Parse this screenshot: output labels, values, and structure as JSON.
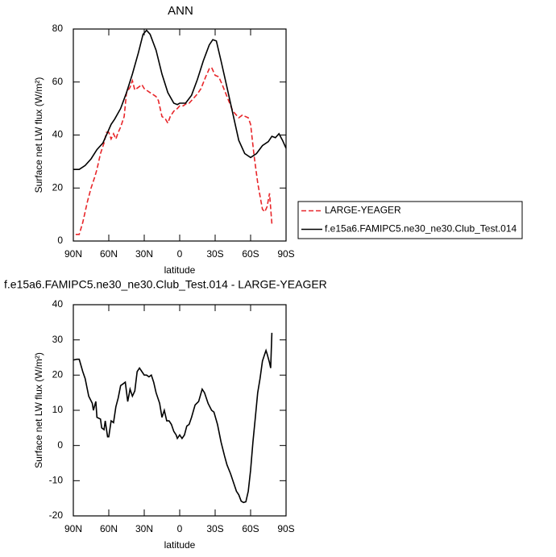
{
  "chart_data": [
    {
      "type": "line",
      "title": "ANN",
      "x_label": "latitude",
      "y_label": "Surface net LW flux (W/m²)",
      "xlim": [
        90,
        -90
      ],
      "ylim": [
        0,
        80
      ],
      "xticks": [
        {
          "value": 90,
          "label": "90N"
        },
        {
          "value": 60,
          "label": "60N"
        },
        {
          "value": 30,
          "label": "30N"
        },
        0,
        {
          "value": -30,
          "label": "30S"
        },
        {
          "value": -60,
          "label": "60S"
        },
        {
          "value": -90,
          "label": "90S"
        }
      ],
      "yticks": [
        0,
        20,
        40,
        60,
        80
      ],
      "legend": "right",
      "series": [
        {
          "name": "LARGE-YEAGER",
          "color": "#e8262a",
          "dashed": true,
          "x": [
            88,
            85,
            82,
            78,
            75,
            72,
            70,
            67,
            64,
            62,
            60,
            58,
            56,
            54,
            52,
            50,
            47,
            45,
            42,
            40,
            38,
            35,
            32,
            30,
            25,
            20,
            18,
            15,
            12,
            10,
            8,
            5,
            2,
            0,
            -3,
            -6,
            -8,
            -12,
            -15,
            -18,
            -22,
            -25,
            -27,
            -30,
            -33,
            -36,
            -40,
            -45,
            -50,
            -53,
            -58,
            -60,
            -63,
            -66,
            -68,
            -70,
            -72,
            -74,
            -76,
            -78
          ],
          "values": [
            2.5,
            2.5,
            7,
            15,
            20,
            24,
            27,
            33,
            37,
            41,
            41,
            38.5,
            40.5,
            38.5,
            41,
            43,
            47,
            56,
            58,
            60.5,
            57,
            58,
            59,
            57.5,
            56,
            54.5,
            53,
            47,
            46,
            44.5,
            47,
            49,
            50,
            51,
            51,
            52,
            52,
            54,
            55.5,
            57.5,
            62,
            65,
            65.5,
            62.5,
            62,
            59,
            54.5,
            49,
            46.5,
            47.5,
            46.5,
            44,
            32,
            22,
            17,
            12,
            11,
            13,
            18,
            6.5
          ]
        },
        {
          "name": "f.e15a6.FAMIPC5.ne30_ne30.Club_Test.014",
          "color": "#000000",
          "dashed": false,
          "x": [
            90,
            85,
            80,
            75,
            70,
            65,
            62,
            58,
            55,
            50,
            45,
            40,
            35,
            31,
            28,
            25,
            20,
            15,
            10,
            5,
            2,
            0,
            -5,
            -10,
            -15,
            -20,
            -25,
            -28,
            -31,
            -35,
            -40,
            -45,
            -50,
            -55,
            -60,
            -65,
            -70,
            -75,
            -78,
            -81,
            -84,
            -87,
            -90
          ],
          "values": [
            27,
            27,
            28.5,
            31,
            34.5,
            37,
            40,
            44,
            46,
            50,
            56,
            63,
            71,
            78,
            79.5,
            78,
            72,
            63,
            56,
            52,
            51.5,
            52,
            52,
            55,
            61,
            68,
            74,
            76,
            75.5,
            68,
            58,
            48,
            38,
            33,
            31.5,
            33,
            36,
            37.5,
            39.5,
            39,
            40.5,
            38,
            35
          ]
        }
      ]
    },
    {
      "type": "line",
      "title": "f.e15a6.FAMIPC5.ne30_ne30.Club_Test.014 - LARGE-YEAGER",
      "x_label": "latitude",
      "y_label": "Surface net LW flux (W/m²)",
      "xlim": [
        90,
        -90
      ],
      "ylim": [
        -20,
        40
      ],
      "xticks": [
        {
          "value": 90,
          "label": "90N"
        },
        {
          "value": 60,
          "label": "60N"
        },
        {
          "value": 30,
          "label": "30N"
        },
        0,
        {
          "value": -30,
          "label": "30S"
        },
        {
          "value": -60,
          "label": "60S"
        },
        {
          "value": -90,
          "label": "90S"
        }
      ],
      "yticks": [
        -20,
        -10,
        0,
        10,
        20,
        30,
        40
      ],
      "series": [
        {
          "color": "#000000",
          "dashed": false,
          "x": [
            90,
            87,
            85,
            82,
            80,
            77,
            74,
            73,
            71,
            70,
            67,
            66,
            64,
            63,
            61,
            60,
            58,
            56,
            54,
            52,
            50,
            48,
            46,
            44,
            42,
            40,
            38,
            36,
            34,
            32,
            30,
            28,
            26,
            24,
            22,
            20,
            17,
            15,
            13,
            11,
            9,
            7,
            5,
            3,
            2,
            0,
            -2,
            -4,
            -6,
            -8,
            -10,
            -13,
            -16,
            -19,
            -21,
            -24,
            -27,
            -29,
            -32,
            -35,
            -38,
            -40,
            -43,
            -46,
            -48,
            -50,
            -52,
            -54,
            -56,
            -58,
            -60,
            -62,
            -64,
            -66,
            -68,
            -70,
            -72,
            -73,
            -74,
            -76,
            -77,
            -78
          ],
          "values": [
            24.3,
            24.5,
            24.5,
            21,
            19,
            14,
            12,
            10,
            12.5,
            8,
            7.5,
            5,
            4.5,
            7,
            2.5,
            2.5,
            7,
            6.5,
            11,
            13.5,
            17,
            17.5,
            18,
            12.5,
            16,
            14,
            15.5,
            21,
            22,
            21,
            20,
            20,
            19.5,
            20,
            18,
            15,
            12,
            8,
            10,
            7,
            7,
            6,
            4,
            3,
            2,
            3,
            2,
            3,
            5.5,
            6,
            8,
            11.5,
            12.5,
            16,
            15,
            12,
            10,
            9.5,
            6,
            1,
            -3,
            -5.5,
            -8,
            -11,
            -13,
            -14,
            -15.8,
            -16.2,
            -16,
            -13,
            -7,
            1,
            8,
            15,
            19,
            24,
            26,
            27,
            26,
            23.5,
            22,
            32
          ]
        }
      ]
    }
  ]
}
